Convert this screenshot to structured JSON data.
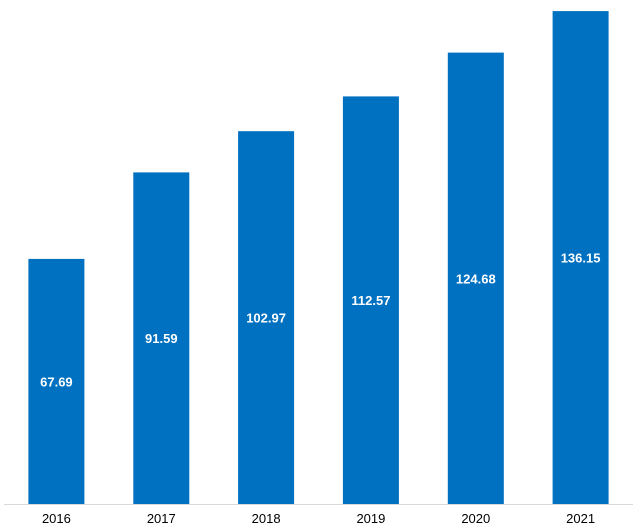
{
  "chart_data": {
    "type": "bar",
    "title": "",
    "xlabel": "",
    "ylabel": "",
    "categories": [
      "2016",
      "2017",
      "2018",
      "2019",
      "2020",
      "2021"
    ],
    "values": [
      67.69,
      91.59,
      102.97,
      112.57,
      124.68,
      136.15
    ],
    "data_labels": [
      "67.69",
      "91.59",
      "102.97",
      "112.57",
      "124.68",
      "136.15"
    ],
    "ylim": [
      0,
      137
    ],
    "grid": false,
    "legend": "none",
    "bar_color": "#0070C0",
    "label_color": "#ffffff"
  }
}
